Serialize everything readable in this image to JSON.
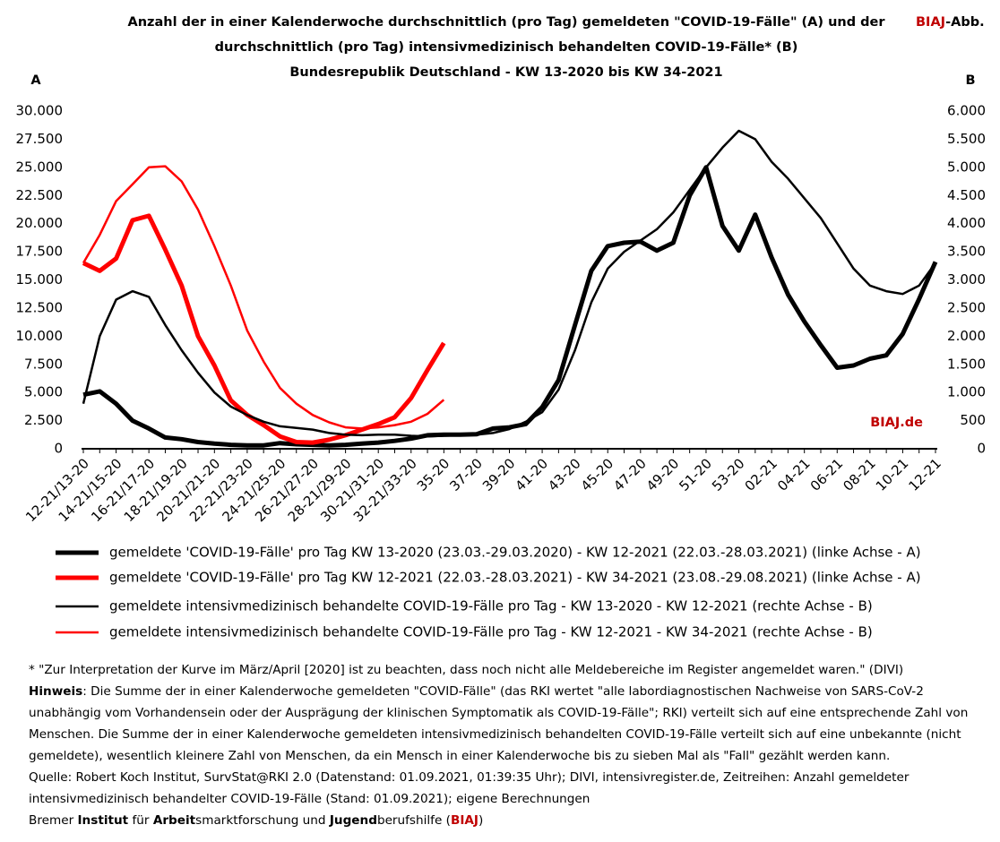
{
  "chart_data": {
    "type": "line",
    "title_lines": [
      "Anzahl der in einer Kalenderwoche durchschnittlich (pro Tag) gemeldeten \"COVID-19-Fälle\" (A) und der",
      "durchschnittlich (pro Tag) intensivmedizinisch behandelten COVID-19-Fälle* (B)",
      "Bundesrepublik Deutschland - KW 13-2020 bis KW 34-2021"
    ],
    "badge": [
      "BIAJ",
      "-Abb."
    ],
    "y_label": "A",
    "y2_label": "B",
    "annotation": "BIAJ.de",
    "categories": [
      "12-21/13-20",
      null,
      "14-21/15-20",
      null,
      "16-21/17-20",
      null,
      "18-21/19-20",
      null,
      "20-21/21-20",
      null,
      "22-21/23-20",
      null,
      "24-21/25-20",
      null,
      "26-21/27-20",
      null,
      "28-21/29-20",
      null,
      "30-21/31-20",
      null,
      "32-21/33-20",
      null,
      "35-20",
      null,
      "37-20",
      null,
      "39-20",
      null,
      "41-20",
      null,
      "43-20",
      null,
      "45-20",
      null,
      "47-20",
      null,
      "49-20",
      null,
      "51-20",
      null,
      "53-20",
      null,
      "02-21",
      null,
      "04-21",
      null,
      "06-21",
      null,
      "08-21",
      null,
      "10-21",
      null,
      "12-21"
    ],
    "ylim": [
      0,
      30000
    ],
    "yticks": [
      0,
      {
        "value": 2500,
        "label": "2.500"
      },
      {
        "value": 5000,
        "label": "5.000"
      },
      {
        "value": 7500,
        "label": "7.500"
      },
      {
        "value": 10000,
        "label": "10.000"
      },
      {
        "value": 12500,
        "label": "12.500"
      },
      {
        "value": 15000,
        "label": "15.000"
      },
      {
        "value": 17500,
        "label": "17.500"
      },
      {
        "value": 20000,
        "label": "20.000"
      },
      {
        "value": 22500,
        "label": "22.500"
      },
      {
        "value": 25000,
        "label": "25.000"
      },
      {
        "value": 27500,
        "label": "27.500"
      },
      {
        "value": 30000,
        "label": "30.000"
      }
    ],
    "y2lim": [
      0,
      6000
    ],
    "y2ticks": [
      0,
      500,
      {
        "value": 1000,
        "label": "1.000"
      },
      {
        "value": 1500,
        "label": "1.500"
      },
      {
        "value": 2000,
        "label": "2.000"
      },
      {
        "value": 2500,
        "label": "2.500"
      },
      {
        "value": 3000,
        "label": "3.000"
      },
      {
        "value": 3500,
        "label": "3.500"
      },
      {
        "value": 4000,
        "label": "4.000"
      },
      {
        "value": 4500,
        "label": "4.500"
      },
      {
        "value": 5000,
        "label": "5.000"
      },
      {
        "value": 5500,
        "label": "5.500"
      },
      {
        "value": 6000,
        "label": "6.000"
      }
    ],
    "series": [
      {
        "name": "gemeldete 'COVID-19-Fälle' pro Tag KW 13-2020 (23.03.-29.03.2020) - KW 12-2021 (22.03.-28.03.2021) (linke Achse - A)",
        "color": "#000000",
        "width": 5,
        "axis": "y",
        "values": [
          4800,
          5100,
          4000,
          2500,
          1800,
          1000,
          850,
          600,
          450,
          350,
          300,
          300,
          500,
          400,
          350,
          300,
          350,
          450,
          550,
          700,
          900,
          1200,
          1250,
          1250,
          1300,
          1800,
          1900,
          2200,
          3700,
          6100,
          11000,
          15800,
          18000,
          18300,
          18400,
          17600,
          18300,
          22500,
          25000,
          19800,
          17600,
          20800,
          17000,
          13700,
          11300,
          9200,
          7200,
          7400,
          8000,
          8300,
          10200,
          13300,
          16600
        ]
      },
      {
        "name": "gemeldete 'COVID-19-Fälle' pro Tag KW 12-2021 (22.03.-28.03.2021) - KW 34-2021 (23.08.-29.08.2021) (linke Achse - A)",
        "color": "#ff0000",
        "width": 5,
        "axis": "y",
        "values": [
          16500,
          15800,
          16900,
          20300,
          20700,
          17700,
          14500,
          10000,
          7400,
          4300,
          3000,
          2100,
          1100,
          600,
          550,
          800,
          1200,
          1700,
          2200,
          2800,
          4500,
          7000,
          9400,
          null,
          null,
          null,
          null,
          null,
          null,
          null,
          null,
          null,
          null,
          null,
          null,
          null,
          null,
          null,
          null,
          null,
          null,
          null,
          null,
          null,
          null,
          null,
          null,
          null,
          null,
          null,
          null,
          null,
          null
        ]
      },
      {
        "name": "gemeldete intensivmedizinisch behandelte COVID-19-Fälle pro Tag - KW 13-2020 - KW 12-2021 (rechte Achse - B)",
        "color": "#000000",
        "width": 2.5,
        "axis": "y2",
        "values": [
          800,
          2000,
          2650,
          2800,
          2700,
          2200,
          1750,
          1350,
          1000,
          750,
          600,
          480,
          400,
          370,
          340,
          280,
          250,
          240,
          250,
          250,
          230,
          220,
          230,
          240,
          250,
          280,
          350,
          480,
          650,
          1050,
          1750,
          2600,
          3200,
          3500,
          3700,
          3900,
          4200,
          4600,
          5000,
          5350,
          5650,
          5500,
          5100,
          4800,
          4450,
          4100,
          3650,
          3200,
          2900,
          2800,
          2750,
          2900,
          3300
        ]
      },
      {
        "name": "gemeldete intensivmedizinisch behandelte COVID-19-Fälle pro Tag - KW 12-2021 - KW 34-2021 (rechte Achse - B)",
        "color": "#ff0000",
        "width": 2.5,
        "axis": "y2",
        "values": [
          3300,
          3800,
          4400,
          4700,
          5000,
          5020,
          4750,
          4250,
          3600,
          2900,
          2100,
          1550,
          1080,
          800,
          600,
          470,
          380,
          360,
          380,
          420,
          480,
          620,
          870,
          null,
          null,
          null,
          null,
          null,
          null,
          null,
          null,
          null,
          null,
          null,
          null,
          null,
          null,
          null,
          null,
          null,
          null,
          null,
          null,
          null,
          null,
          null,
          null,
          null,
          null,
          null,
          null,
          null,
          null
        ]
      }
    ]
  },
  "footer": {
    "footnote": "* \"Zur Interpretation der Kurve im März/April [2020] ist zu beachten, dass noch nicht alle Meldebereiche im Register angemeldet waren.\" (DIVI)",
    "hint_label": "Hinweis",
    "hint_text": ": Die Summe der in einer Kalenderwoche gemeldeten \"COVID-Fälle\" (das RKI wertet \"alle labordiagnostischen Nachweise von SARS-CoV-2 unabhängig vom Vorhandensein oder der Ausprägung der klinischen Symptomatik als COVID-19-Fälle\"; RKI) verteilt sich auf eine entsprechende Zahl von Menschen. Die Summe der in einer Kalenderwoche gemeldeten intensivmedizinisch behandelten COVID-19-Fälle verteilt sich auf eine unbekannte (nicht gemeldete), wesentlich kleinere Zahl von Menschen, da ein Mensch in einer Kalenderwoche bis zu sieben Mal als \"Fall\" gezählt werden kann.",
    "source": "Quelle: Robert Koch Institut, SurvStat@RKI 2.0 (Datenstand: 01.09.2021, 01:39:35 Uhr); DIVI, intensivregister.de, Zeitreihen: Anzahl gemeldeter intensivmedizinisch behandelter COVID-19-Fälle (Stand: 01.09.2021); eigene Berechnungen",
    "credit": [
      "Bremer ",
      "Institut",
      " für ",
      "Arbeit",
      "smarktforschung und ",
      "Jugend",
      "berufshilfe (",
      "BIAJ",
      ")"
    ]
  }
}
